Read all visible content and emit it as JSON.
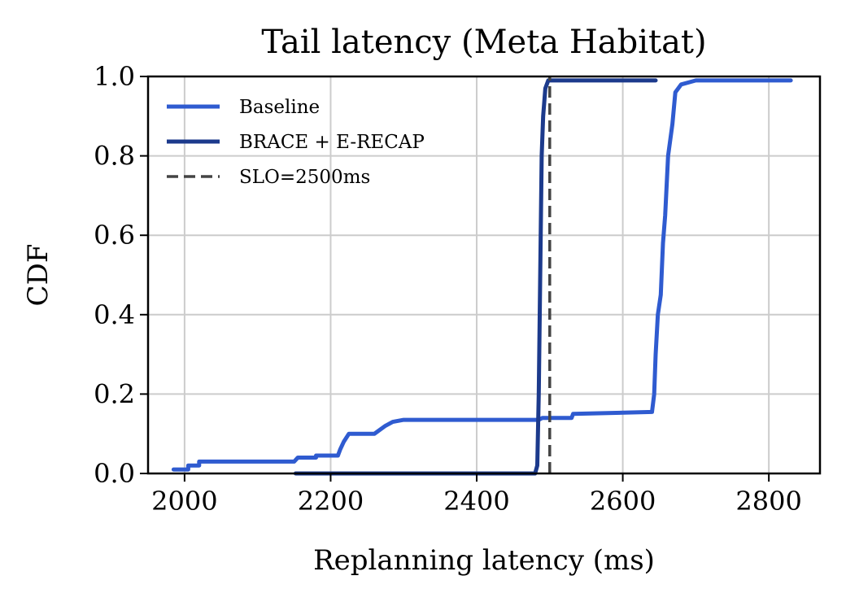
{
  "chart_data": {
    "type": "line",
    "title": "Tail latency (Meta Habitat)",
    "xlabel": "Replanning latency (ms)",
    "ylabel": "CDF",
    "xlim": [
      1950,
      2870
    ],
    "ylim": [
      0,
      1.0
    ],
    "xticks": [
      2000,
      2200,
      2400,
      2600,
      2800
    ],
    "xtick_labels": [
      "2000",
      "2200",
      "2400",
      "2600",
      "2800"
    ],
    "yticks": [
      0.0,
      0.2,
      0.4,
      0.6,
      0.8,
      1.0
    ],
    "ytick_labels": [
      "0.0",
      "0.2",
      "0.4",
      "0.6",
      "0.8",
      "1.0"
    ],
    "grid": true,
    "legend_position": "top-left",
    "series": [
      {
        "name": "Baseline",
        "color": "#2f5bd0",
        "style": "solid",
        "points": [
          [
            1985,
            0.01
          ],
          [
            2005,
            0.01
          ],
          [
            2005,
            0.02
          ],
          [
            2020,
            0.02
          ],
          [
            2020,
            0.03
          ],
          [
            2150,
            0.03
          ],
          [
            2155,
            0.04
          ],
          [
            2180,
            0.04
          ],
          [
            2180,
            0.045
          ],
          [
            2210,
            0.045
          ],
          [
            2213,
            0.06
          ],
          [
            2218,
            0.08
          ],
          [
            2225,
            0.1
          ],
          [
            2260,
            0.1
          ],
          [
            2275,
            0.12
          ],
          [
            2285,
            0.13
          ],
          [
            2300,
            0.135
          ],
          [
            2485,
            0.135
          ],
          [
            2490,
            0.14
          ],
          [
            2530,
            0.14
          ],
          [
            2532,
            0.15
          ],
          [
            2640,
            0.155
          ],
          [
            2643,
            0.2
          ],
          [
            2645,
            0.3
          ],
          [
            2648,
            0.4
          ],
          [
            2652,
            0.45
          ],
          [
            2655,
            0.58
          ],
          [
            2658,
            0.65
          ],
          [
            2662,
            0.8
          ],
          [
            2668,
            0.88
          ],
          [
            2672,
            0.96
          ],
          [
            2680,
            0.98
          ],
          [
            2700,
            0.99
          ],
          [
            2830,
            0.99
          ]
        ]
      },
      {
        "name": "BRACE + E-RECAP",
        "color": "#1c3a8c",
        "style": "solid",
        "points": [
          [
            2152,
            0.0
          ],
          [
            2480,
            0.0
          ],
          [
            2483,
            0.02
          ],
          [
            2485,
            0.2
          ],
          [
            2487,
            0.5
          ],
          [
            2489,
            0.8
          ],
          [
            2491,
            0.9
          ],
          [
            2494,
            0.97
          ],
          [
            2498,
            0.99
          ],
          [
            2645,
            0.99
          ]
        ]
      },
      {
        "name": "SLO=2500ms",
        "color": "#444444",
        "style": "dashed",
        "points": [
          [
            2500,
            0.0
          ],
          [
            2500,
            1.0
          ]
        ]
      }
    ]
  }
}
